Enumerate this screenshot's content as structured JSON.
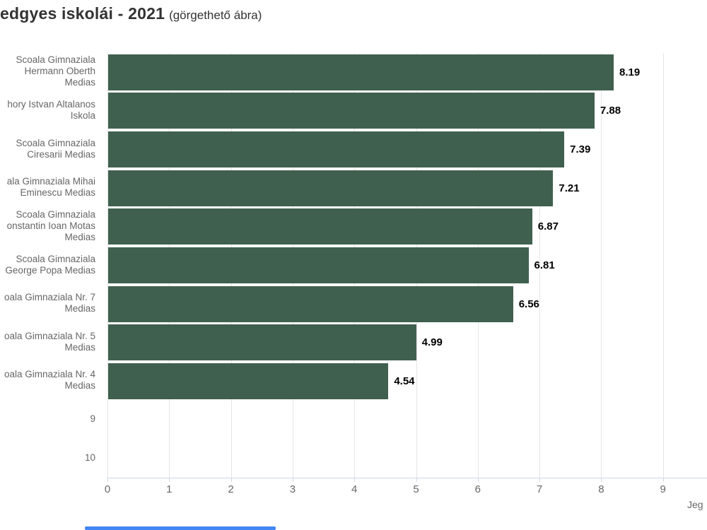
{
  "header": {
    "title": "edgyes iskolái - 2021",
    "subtitle": "(görgethető ábra)"
  },
  "colors": {
    "bar": "#40604f",
    "gridline": "#e6e6e6",
    "axis_line": "#ccd6eb",
    "category_label": "#666666",
    "value_label": "#000000",
    "title": "#333333",
    "scrollbar": "#4285f4"
  },
  "chart_data": {
    "type": "bar",
    "orientation": "horizontal",
    "title": "edgyes iskolái - 2021",
    "subtitle": "(görgethető ábra)",
    "xlabel": "Jeg",
    "ylabel": "",
    "xlim": [
      0,
      9
    ],
    "x_ticks": [
      0,
      1,
      2,
      3,
      4,
      5,
      6,
      7,
      8,
      9
    ],
    "grid": true,
    "legend": false,
    "bar_color": "#40604f",
    "categories": [
      "Scoala Gimnaziala Hermann Oberth Medias",
      "hory Istvan Altalanos Iskola",
      "Scoala Gimnaziala Ciresarii Medias",
      "ala Gimnaziala Mihai Eminescu Medias",
      "Scoala Gimnaziala onstantin Ioan Motas Medias",
      "Scoala Gimnaziala George Popa Medias",
      "oala Gimnaziala Nr. 7 Medias",
      "oala Gimnaziala Nr. 5 Medias",
      "oala Gimnaziala Nr. 4 Medias",
      "9",
      "10"
    ],
    "category_label_lines": [
      [
        "Scoala Gimnaziala",
        "Hermann Oberth",
        "Medias"
      ],
      [
        "hory Istvan Altalanos",
        "Iskola"
      ],
      [
        "Scoala Gimnaziala",
        "Ciresarii Medias"
      ],
      [
        "ala Gimnaziala Mihai",
        "Eminescu Medias"
      ],
      [
        "Scoala Gimnaziala",
        "onstantin Ioan Motas",
        "Medias"
      ],
      [
        "Scoala Gimnaziala",
        "George Popa Medias"
      ],
      [
        "oala Gimnaziala Nr. 7",
        "Medias"
      ],
      [
        "oala Gimnaziala Nr. 5",
        "Medias"
      ],
      [
        "oala Gimnaziala Nr. 4",
        "Medias"
      ],
      [
        "9"
      ],
      [
        "10"
      ]
    ],
    "values": [
      8.19,
      7.88,
      7.39,
      7.21,
      6.87,
      6.81,
      6.56,
      4.99,
      4.54,
      null,
      null
    ],
    "value_labels": [
      "8.19",
      "7.88",
      "7.39",
      "7.21",
      "6.87",
      "6.81",
      "6.56",
      "4.99",
      "4.54",
      "",
      ""
    ]
  },
  "scrollbar": {
    "present": true
  }
}
